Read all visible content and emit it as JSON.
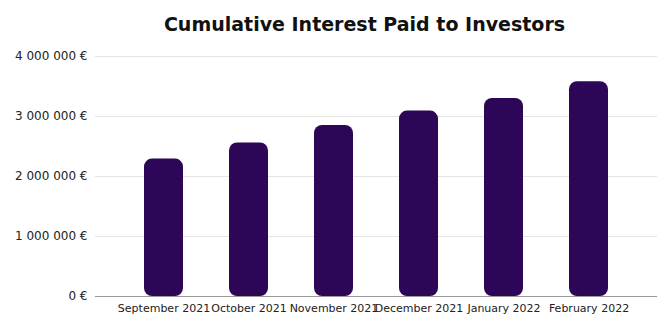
{
  "chart_data": {
    "type": "bar",
    "title": "Cumulative Interest Paid to Investors",
    "categories": [
      "September 2021",
      "October 2021",
      "November 2021",
      "December 2021",
      "January 2022",
      "February 2022"
    ],
    "values": [
      2290000,
      2560000,
      2850000,
      3090000,
      3300000,
      3580000
    ],
    "color": "#2d0657",
    "ylim": [
      0,
      4000000
    ],
    "yticks": [
      {
        "value": 0,
        "label": "0 €"
      },
      {
        "value": 1000000,
        "label": "1 000 000 €"
      },
      {
        "value": 2000000,
        "label": "2 000 000 €"
      },
      {
        "value": 3000000,
        "label": "3 000 000 €"
      },
      {
        "value": 4000000,
        "label": "4 000 000 €"
      }
    ],
    "grid": true
  }
}
